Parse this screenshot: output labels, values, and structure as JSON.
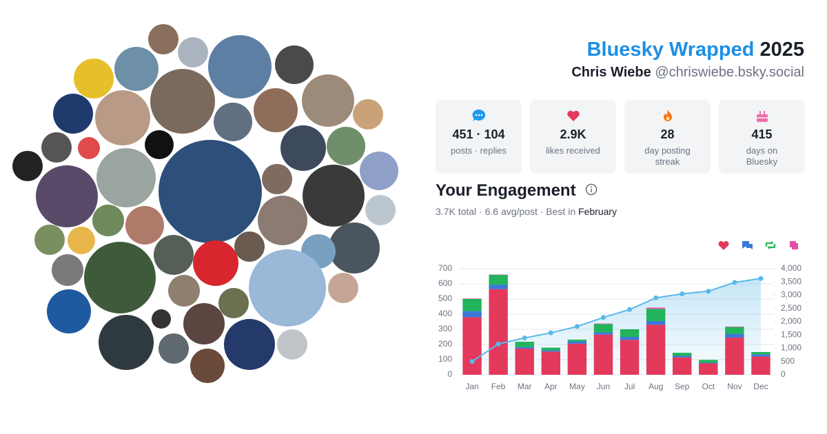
{
  "header": {
    "title": "Bluesky Wrapped",
    "year": "2025",
    "name": "Chris Wiebe",
    "handle": "@chriswiebe.bsky.social"
  },
  "stats": [
    {
      "value": "451 · 104",
      "label": "posts · replies"
    },
    {
      "value": "2.9K",
      "label": "likes received"
    },
    {
      "value": "28",
      "label": "day posting streak"
    },
    {
      "value": "415",
      "label": "days on Bluesky"
    }
  ],
  "engagement": {
    "title": "Your Engagement",
    "summary": "3.7K total · 6.6 avg/post · Best in",
    "best_month": "February"
  },
  "chart_data": {
    "type": "bar",
    "stacked": true,
    "categories": [
      "Jan",
      "Feb",
      "Mar",
      "Apr",
      "May",
      "Jun",
      "Jul",
      "Aug",
      "Sep",
      "Oct",
      "Nov",
      "Dec"
    ],
    "series": [
      {
        "color": "#e3395b",
        "values": [
          380,
          565,
          173,
          153,
          205,
          265,
          230,
          330,
          115,
          75,
          245,
          120
        ]
      },
      {
        "color": "#3b78d8",
        "values": [
          40,
          30,
          10,
          8,
          15,
          15,
          20,
          25,
          10,
          5,
          25,
          15
        ]
      },
      {
        "color": "#22b45a",
        "values": [
          80,
          64,
          35,
          18,
          12,
          55,
          50,
          80,
          20,
          18,
          45,
          15
        ]
      },
      {
        "color": "#e64fa6",
        "values": [
          3,
          2,
          0,
          0,
          0,
          3,
          0,
          8,
          0,
          0,
          3,
          0
        ]
      },
      {
        "type": "line",
        "axis": "y2",
        "color": "#5ab8ea",
        "values": [
          500,
          1160,
          1390,
          1580,
          1820,
          2160,
          2460,
          2900,
          3050,
          3150,
          3480,
          3630
        ]
      }
    ],
    "ylim": [
      0,
      700
    ],
    "yticks": [
      0,
      100,
      200,
      300,
      400,
      500,
      600,
      700
    ],
    "y2lim": [
      0,
      4000
    ],
    "y2ticks": [
      0,
      500,
      {
        "value": 1000,
        "label": "1,000"
      },
      {
        "value": 1500,
        "label": "1,500"
      },
      {
        "value": 2000,
        "label": "2,000"
      },
      {
        "value": 2500,
        "label": "2,500"
      },
      {
        "value": 3000,
        "label": "3,000"
      },
      {
        "value": 3500,
        "label": "3,500"
      },
      {
        "value": 4000,
        "label": "4,000"
      }
    ],
    "grid": true
  }
}
